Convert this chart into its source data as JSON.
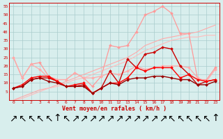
{
  "x": [
    0,
    1,
    2,
    3,
    4,
    5,
    6,
    7,
    8,
    9,
    10,
    11,
    12,
    13,
    14,
    15,
    16,
    17,
    18,
    19,
    20,
    21,
    22,
    23
  ],
  "background_color": "#d8eeed",
  "grid_color": "#aacccc",
  "xlabel": "Vent moyen/en rafales ( km/h )",
  "ylim": [
    0,
    57
  ],
  "yticks": [
    0,
    5,
    10,
    15,
    20,
    25,
    30,
    35,
    40,
    45,
    50,
    55
  ],
  "lines": [
    {
      "values": [
        0,
        2,
        4,
        6,
        7,
        9,
        11,
        13,
        15,
        17,
        19,
        21,
        23,
        25,
        28,
        32,
        34,
        36,
        37,
        38,
        39,
        40,
        42,
        44
      ],
      "color": "#ffaaaa",
      "lw": 0.8,
      "marker": null
    },
    {
      "values": [
        0,
        1,
        3,
        5,
        7,
        8,
        10,
        12,
        13,
        15,
        17,
        19,
        21,
        23,
        26,
        29,
        31,
        33,
        35,
        36,
        37,
        37,
        38,
        38
      ],
      "color": "#ffbbbb",
      "lw": 0.8,
      "marker": null
    },
    {
      "values": [
        25,
        13,
        21,
        22,
        14,
        12,
        12,
        16,
        13,
        8,
        14,
        32,
        31,
        32,
        40,
        50,
        52,
        55,
        51,
        39,
        39,
        12,
        12,
        19
      ],
      "color": "#ff9999",
      "lw": 0.9,
      "marker": "D",
      "ms": 2.0
    },
    {
      "values": [
        25,
        13,
        21,
        18,
        13,
        12,
        12,
        16,
        13,
        13,
        14,
        16,
        15,
        17,
        20,
        18,
        19,
        20,
        20,
        20,
        19,
        13,
        11,
        18
      ],
      "color": "#ffaaaa",
      "lw": 0.9,
      "marker": "D",
      "ms": 2.0
    },
    {
      "values": [
        7,
        8,
        12,
        13,
        13,
        11,
        8,
        8,
        9,
        4,
        7,
        17,
        10,
        24,
        19,
        27,
        28,
        31,
        30,
        20,
        15,
        9,
        11,
        12
      ],
      "color": "#cc0000",
      "lw": 1.0,
      "marker": "D",
      "ms": 2.0
    },
    {
      "values": [
        7,
        9,
        13,
        14,
        14,
        11,
        8,
        9,
        10,
        4,
        7,
        10,
        10,
        13,
        19,
        17,
        19,
        19,
        19,
        13,
        15,
        12,
        11,
        12
      ],
      "color": "#ff0000",
      "lw": 1.0,
      "marker": "D",
      "ms": 2.0
    },
    {
      "values": [
        7,
        8,
        12,
        13,
        11,
        10,
        8,
        8,
        8,
        4,
        7,
        10,
        9,
        12,
        13,
        13,
        14,
        14,
        13,
        12,
        12,
        9,
        9,
        11
      ],
      "color": "#990000",
      "lw": 1.0,
      "marker": "D",
      "ms": 2.0
    }
  ],
  "wind_arrows": [
    "↗",
    "↖",
    "↖",
    "↖",
    "↖",
    "↑",
    "↖",
    "↗",
    "↗",
    "↗",
    "↗",
    "↗",
    "↗",
    "↗",
    "↗",
    "↗",
    "↗",
    "↗",
    "↖",
    "↖",
    "↖",
    "↖",
    "↖",
    "↑"
  ]
}
